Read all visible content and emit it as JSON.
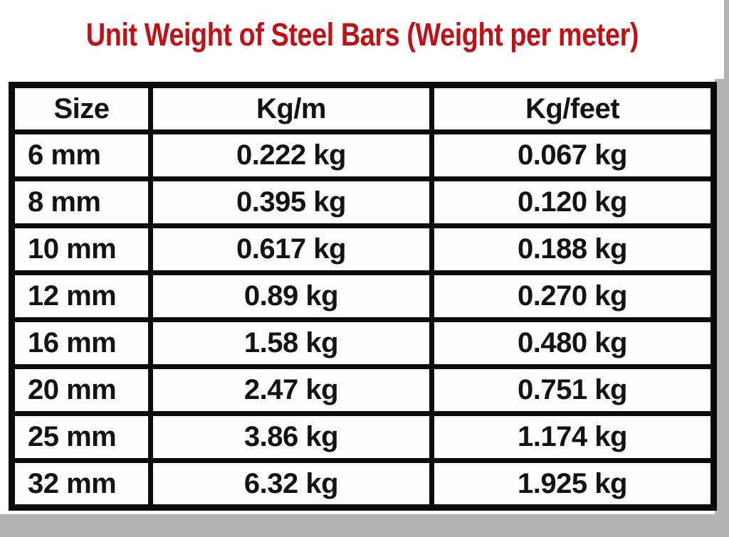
{
  "page": {
    "title": "Unit Weight of Steel Bars (Weight per meter)"
  },
  "colors": {
    "title_red": "#c11115",
    "border_black": "#0c0c0c",
    "background_gray": "#b4b4b4",
    "paper_white": "#ffffff",
    "text_black": "#131313"
  },
  "chart_data": {
    "type": "table",
    "title": "Unit Weight of Steel Bars (Weight per meter)",
    "columns": [
      "Size",
      "Kg/m",
      "Kg/feet"
    ],
    "rows": [
      [
        "6 mm",
        "0.222 kg",
        "0.067 kg"
      ],
      [
        "8 mm",
        "0.395 kg",
        "0.120 kg"
      ],
      [
        "10 mm",
        "0.617 kg",
        "0.188 kg"
      ],
      [
        "12 mm",
        "0.89 kg",
        "0.270 kg"
      ],
      [
        "16 mm",
        "1.58 kg",
        "0.480 kg"
      ],
      [
        "20 mm",
        "2.47 kg",
        "0.751 kg"
      ],
      [
        "25 mm",
        "3.86 kg",
        "1.174 kg"
      ],
      [
        "32 mm",
        "6.32 kg",
        "1.925 kg"
      ]
    ]
  }
}
